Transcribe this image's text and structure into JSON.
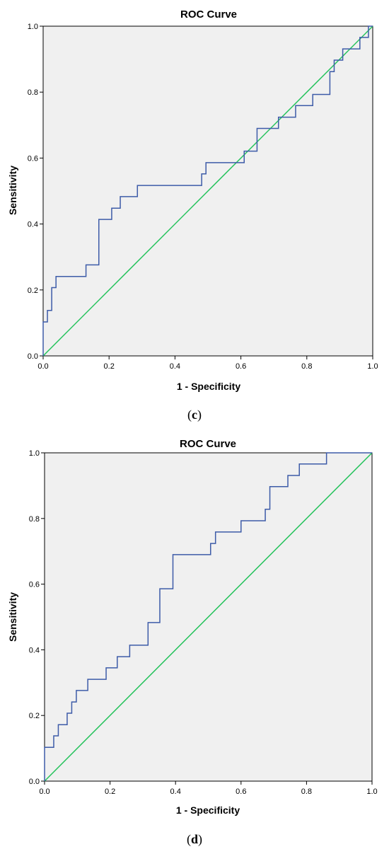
{
  "chart_data": [
    {
      "type": "line",
      "title": "ROC Curve",
      "xlabel": "1 - Specificity",
      "ylabel": "Sensitivity",
      "xlim": [
        0,
        1
      ],
      "ylim": [
        0,
        1
      ],
      "x_ticks": [
        "0.0",
        "0.2",
        "0.4",
        "0.6",
        "0.8",
        "1.0"
      ],
      "y_ticks": [
        "0.0",
        "0.2",
        "0.4",
        "0.6",
        "0.8",
        "1.0"
      ],
      "grid": false,
      "panel_label": "(c)",
      "panel_letter": "c",
      "colors": {
        "roc": "#3d5ba8",
        "reference": "#22c25a",
        "background": "#f0f0f0"
      },
      "series": [
        {
          "color": "#3d5ba8",
          "points": [
            [
              0,
              0
            ],
            [
              0,
              0.103
            ],
            [
              0.013,
              0.103
            ],
            [
              0.013,
              0.138
            ],
            [
              0.026,
              0.138
            ],
            [
              0.026,
              0.207
            ],
            [
              0.039,
              0.207
            ],
            [
              0.039,
              0.241
            ],
            [
              0.13,
              0.241
            ],
            [
              0.13,
              0.276
            ],
            [
              0.169,
              0.276
            ],
            [
              0.169,
              0.414
            ],
            [
              0.208,
              0.414
            ],
            [
              0.208,
              0.448
            ],
            [
              0.234,
              0.448
            ],
            [
              0.234,
              0.483
            ],
            [
              0.286,
              0.483
            ],
            [
              0.286,
              0.517
            ],
            [
              0.481,
              0.517
            ],
            [
              0.481,
              0.552
            ],
            [
              0.494,
              0.552
            ],
            [
              0.494,
              0.586
            ],
            [
              0.61,
              0.586
            ],
            [
              0.61,
              0.621
            ],
            [
              0.649,
              0.621
            ],
            [
              0.649,
              0.69
            ],
            [
              0.714,
              0.69
            ],
            [
              0.714,
              0.724
            ],
            [
              0.766,
              0.724
            ],
            [
              0.766,
              0.759
            ],
            [
              0.818,
              0.759
            ],
            [
              0.818,
              0.793
            ],
            [
              0.87,
              0.793
            ],
            [
              0.87,
              0.862
            ],
            [
              0.883,
              0.862
            ],
            [
              0.883,
              0.897
            ],
            [
              0.909,
              0.897
            ],
            [
              0.909,
              0.931
            ],
            [
              0.961,
              0.931
            ],
            [
              0.961,
              0.966
            ],
            [
              0.987,
              0.966
            ],
            [
              0.987,
              1
            ],
            [
              1,
              1
            ]
          ]
        },
        {
          "color": "#22c25a",
          "points": [
            [
              0,
              0
            ],
            [
              1,
              1
            ]
          ]
        }
      ]
    },
    {
      "type": "line",
      "title": "ROC Curve",
      "xlabel": "1 - Specificity",
      "ylabel": "Sensitivity",
      "xlim": [
        0,
        1
      ],
      "ylim": [
        0,
        1
      ],
      "x_ticks": [
        "0.0",
        "0.2",
        "0.4",
        "0.6",
        "0.8",
        "1.0"
      ],
      "y_ticks": [
        "0.0",
        "0.2",
        "0.4",
        "0.6",
        "0.8",
        "1.0"
      ],
      "grid": false,
      "panel_label": "(d)",
      "panel_letter": "d",
      "colors": {
        "roc": "#3d5ba8",
        "reference": "#22c25a",
        "background": "#f0f0f0"
      },
      "series": [
        {
          "color": "#3d5ba8",
          "points": [
            [
              0,
              0
            ],
            [
              0,
              0.103
            ],
            [
              0.028,
              0.103
            ],
            [
              0.028,
              0.138
            ],
            [
              0.042,
              0.138
            ],
            [
              0.042,
              0.172
            ],
            [
              0.069,
              0.172
            ],
            [
              0.069,
              0.207
            ],
            [
              0.083,
              0.207
            ],
            [
              0.083,
              0.241
            ],
            [
              0.097,
              0.241
            ],
            [
              0.097,
              0.276
            ],
            [
              0.132,
              0.276
            ],
            [
              0.132,
              0.31
            ],
            [
              0.188,
              0.31
            ],
            [
              0.188,
              0.345
            ],
            [
              0.222,
              0.345
            ],
            [
              0.222,
              0.379
            ],
            [
              0.26,
              0.379
            ],
            [
              0.26,
              0.414
            ],
            [
              0.316,
              0.414
            ],
            [
              0.316,
              0.483
            ],
            [
              0.352,
              0.483
            ],
            [
              0.352,
              0.586
            ],
            [
              0.392,
              0.586
            ],
            [
              0.392,
              0.69
            ],
            [
              0.507,
              0.69
            ],
            [
              0.507,
              0.724
            ],
            [
              0.522,
              0.724
            ],
            [
              0.522,
              0.759
            ],
            [
              0.6,
              0.759
            ],
            [
              0.6,
              0.793
            ],
            [
              0.674,
              0.793
            ],
            [
              0.674,
              0.828
            ],
            [
              0.688,
              0.828
            ],
            [
              0.688,
              0.897
            ],
            [
              0.743,
              0.897
            ],
            [
              0.743,
              0.931
            ],
            [
              0.778,
              0.931
            ],
            [
              0.778,
              0.966
            ],
            [
              0.861,
              0.966
            ],
            [
              0.861,
              1
            ],
            [
              1,
              1
            ]
          ]
        },
        {
          "color": "#22c25a",
          "points": [
            [
              0,
              0
            ],
            [
              1,
              1
            ]
          ]
        }
      ]
    }
  ]
}
